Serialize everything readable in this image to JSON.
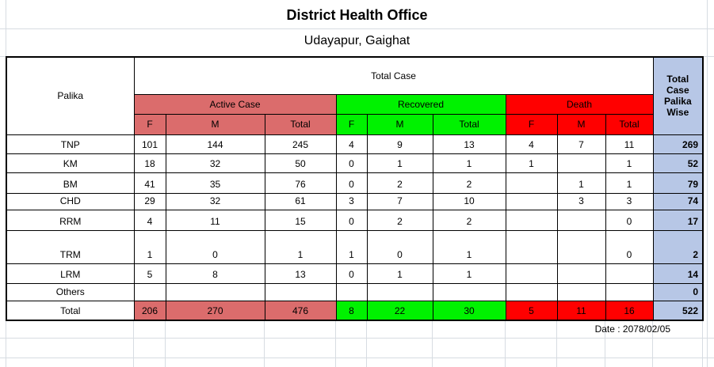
{
  "titles": {
    "title": "District Health Office",
    "subtitle": "Udayapur, Gaighat"
  },
  "table": {
    "corner_header": "Palika",
    "span_header": "Total Case",
    "palika_wise_header": "Total Case Palika Wise",
    "groups": [
      {
        "label": "Active Case",
        "color": "#db6c6c"
      },
      {
        "label": "Recovered",
        "color": "#00f200"
      },
      {
        "label": "Death",
        "color": "#ff0000"
      }
    ],
    "sub_headers": [
      "F",
      "M",
      "Total"
    ],
    "rows": [
      {
        "cells": [
          "TNP",
          "101",
          "144",
          "245",
          "4",
          "9",
          "13",
          "4",
          "7",
          "11",
          "269"
        ]
      },
      {
        "cells": [
          "KM",
          "18",
          "32",
          "50",
          "0",
          "1",
          "1",
          "1",
          "",
          "1",
          "52"
        ]
      },
      {
        "cells": [
          "BM",
          "41",
          "35",
          "76",
          "0",
          "2",
          "2",
          "",
          "1",
          "1",
          "79"
        ]
      },
      {
        "cells": [
          "CHD",
          "29",
          "32",
          "61",
          "3",
          "7",
          "10",
          "",
          "3",
          "3",
          "74"
        ]
      },
      {
        "cells": [
          "RRM",
          "4",
          "11",
          "15",
          "0",
          "2",
          "2",
          "",
          "",
          "0",
          "17"
        ]
      },
      {
        "cells": [
          "TRM",
          "1",
          "0",
          "1",
          "1",
          "0",
          "1",
          "",
          "",
          "0",
          "2"
        ]
      },
      {
        "cells": [
          "LRM",
          "5",
          "8",
          "13",
          "0",
          "1",
          "1",
          "",
          "",
          "",
          "14"
        ]
      },
      {
        "cells": [
          "Others",
          "",
          "",
          "",
          "",
          "",
          "",
          "",
          "",
          "",
          "0"
        ]
      },
      {
        "cells": [
          "Total",
          "206",
          "270",
          "476",
          "8",
          "22",
          "30",
          "5",
          "11",
          "16",
          "522"
        ]
      }
    ]
  },
  "footer": {
    "date": "Date : 2078/02/05"
  },
  "colors": {
    "active_case": "#db6c6c",
    "recovered": "#00f200",
    "death": "#ff0000",
    "palika_wise": "#b7c7e6",
    "gridline": "#d7dce2"
  }
}
